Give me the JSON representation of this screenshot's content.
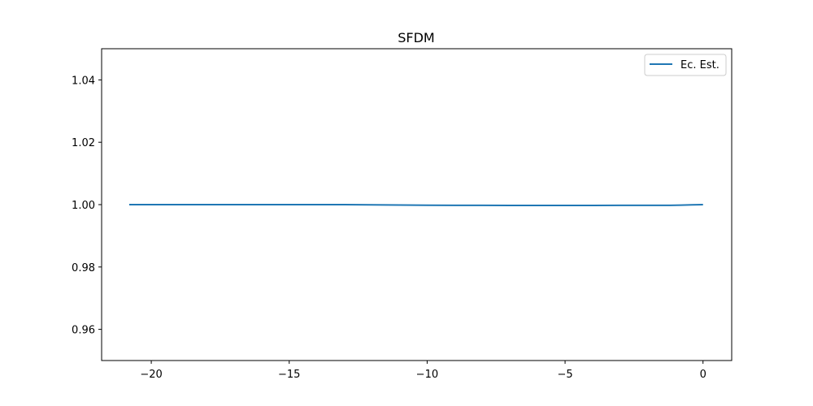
{
  "chart_data": {
    "type": "line",
    "title": "SFDM",
    "xlabel": "",
    "ylabel": "",
    "xlim": [
      -21.8,
      1.04
    ],
    "ylim": [
      0.95,
      1.05
    ],
    "xticks": [
      -20,
      -15,
      -10,
      -5,
      0
    ],
    "xtick_labels": [
      "−20",
      "−15",
      "−10",
      "−5",
      "0"
    ],
    "yticks": [
      0.96,
      0.98,
      1.0,
      1.02,
      1.04
    ],
    "ytick_labels": [
      "0.96",
      "0.98",
      "1.00",
      "1.02",
      "1.04"
    ],
    "grid": false,
    "legend": {
      "position": "top-right"
    },
    "series": [
      {
        "name": "Ec. Est.",
        "color": "#1f77b4",
        "x": [
          -20.8,
          -18,
          -16,
          -14,
          -13,
          -12,
          -11,
          -10,
          -9,
          -8,
          -7,
          -6,
          -5,
          -4,
          -3,
          -2,
          -1.2,
          -0.8,
          -0.4,
          0
        ],
        "y": [
          1.0,
          1.0,
          1.0,
          1.0,
          1.0,
          0.99995,
          0.99988,
          0.99982,
          0.99978,
          0.99976,
          0.99975,
          0.99975,
          0.99975,
          0.99975,
          0.99976,
          0.99977,
          0.99978,
          0.99985,
          0.99993,
          1.0
        ]
      }
    ]
  }
}
